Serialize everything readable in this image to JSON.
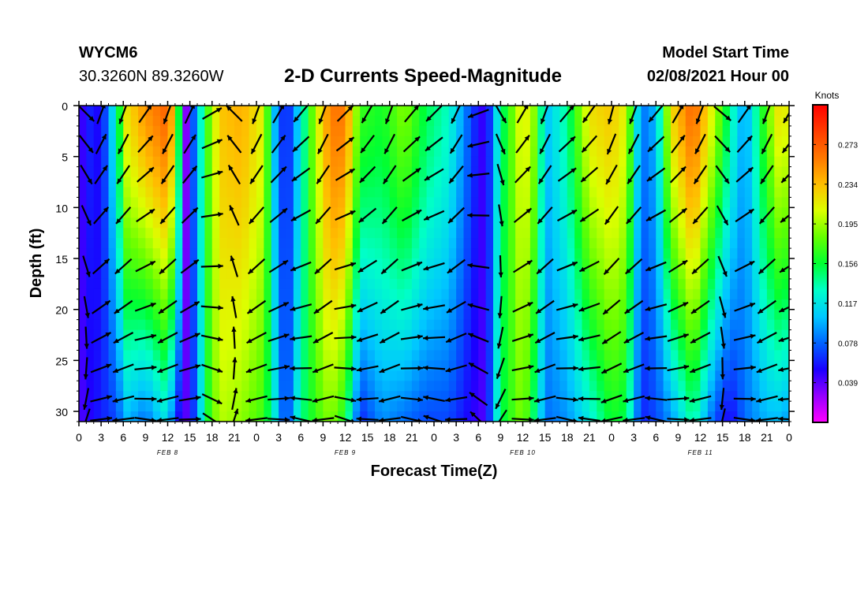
{
  "header": {
    "station": "WYCM6",
    "coords": "30.3260N 89.3260W",
    "title": "2-D Currents Speed-Magnitude",
    "model_start_label": "Model Start Time",
    "model_start_value": "02/08/2021 Hour 00"
  },
  "chart_data": {
    "type": "heatmap",
    "title": "2-D Currents Speed-Magnitude",
    "xlabel": "Forecast Time(Z)",
    "ylabel": "Depth (ft)",
    "units": "Knots",
    "x_tick_labels": [
      "0",
      "3",
      "6",
      "9",
      "12",
      "15",
      "18",
      "21",
      "0",
      "3",
      "6",
      "9",
      "12",
      "15",
      "18",
      "21",
      "0",
      "3",
      "6",
      "9",
      "12",
      "15",
      "18",
      "21",
      "0",
      "3",
      "6",
      "9",
      "12",
      "15",
      "18",
      "21",
      "0"
    ],
    "x_range_hours": [
      0,
      96
    ],
    "day_labels": [
      {
        "label": "FEB 8",
        "hour": 12
      },
      {
        "label": "FEB 9",
        "hour": 36
      },
      {
        "label": "FEB 10",
        "hour": 60
      },
      {
        "label": "FEB 11",
        "hour": 84
      }
    ],
    "y_ticks": [
      0,
      5,
      10,
      15,
      20,
      25,
      30
    ],
    "y_tick_labels": [
      "0",
      "5",
      "10",
      "15",
      "20",
      "25",
      "30"
    ],
    "y_range_ft": [
      0,
      31
    ],
    "colorbar": {
      "range": [
        0,
        0.312
      ],
      "ticks": [
        0.039,
        0.078,
        0.117,
        0.156,
        0.195,
        0.234,
        0.273
      ],
      "tick_labels": [
        "0.039",
        "0.078",
        "0.117",
        "0.156",
        "0.195",
        "0.234",
        "0.273"
      ],
      "stops": [
        "#ff00ff",
        "#9600ff",
        "#1a00ff",
        "#0064ff",
        "#00c8ff",
        "#00ffc8",
        "#00ff32",
        "#64ff00",
        "#dcff00",
        "#ffbe00",
        "#ff7800",
        "#ff3c00",
        "#ff0000"
      ]
    },
    "speed_profile": [
      {
        "hour": 0,
        "surface": 0.04,
        "deep": 0.04
      },
      {
        "hour": 1.5,
        "surface": 0.06,
        "deep": 0.05
      },
      {
        "hour": 3,
        "surface": 0.05,
        "deep": 0.06
      },
      {
        "hour": 5,
        "surface": 0.13,
        "deep": 0.07
      },
      {
        "hour": 6.5,
        "surface": 0.22,
        "deep": 0.1
      },
      {
        "hour": 9,
        "surface": 0.25,
        "deep": 0.08
      },
      {
        "hour": 12,
        "surface": 0.27,
        "deep": 0.12
      },
      {
        "hour": 13,
        "surface": 0.22,
        "deep": 0.06
      },
      {
        "hour": 14.5,
        "surface": 0.03,
        "deep": 0.04
      },
      {
        "hour": 16,
        "surface": 0.1,
        "deep": 0.08
      },
      {
        "hour": 17,
        "surface": 0.16,
        "deep": 0.15
      },
      {
        "hour": 19,
        "surface": 0.23,
        "deep": 0.2
      },
      {
        "hour": 22,
        "surface": 0.24,
        "deep": 0.19
      },
      {
        "hour": 25,
        "surface": 0.21,
        "deep": 0.17
      },
      {
        "hour": 26.5,
        "surface": 0.1,
        "deep": 0.12
      },
      {
        "hour": 28,
        "surface": 0.05,
        "deep": 0.06
      },
      {
        "hour": 30,
        "surface": 0.12,
        "deep": 0.14
      },
      {
        "hour": 32,
        "surface": 0.2,
        "deep": 0.17
      },
      {
        "hour": 34,
        "surface": 0.26,
        "deep": 0.19
      },
      {
        "hour": 36,
        "surface": 0.26,
        "deep": 0.16
      },
      {
        "hour": 38,
        "surface": 0.17,
        "deep": 0.06
      },
      {
        "hour": 41,
        "surface": 0.16,
        "deep": 0.09
      },
      {
        "hour": 44,
        "surface": 0.19,
        "deep": 0.08
      },
      {
        "hour": 47,
        "surface": 0.15,
        "deep": 0.07
      },
      {
        "hour": 50,
        "surface": 0.13,
        "deep": 0.07
      },
      {
        "hour": 53,
        "surface": 0.07,
        "deep": 0.05
      },
      {
        "hour": 55,
        "surface": 0.04,
        "deep": 0.04
      },
      {
        "hour": 57,
        "surface": 0.14,
        "deep": 0.15
      },
      {
        "hour": 60,
        "surface": 0.22,
        "deep": 0.19
      },
      {
        "hour": 62,
        "surface": 0.18,
        "deep": 0.13
      },
      {
        "hour": 63,
        "surface": 0.1,
        "deep": 0.08
      },
      {
        "hour": 66,
        "surface": 0.14,
        "deep": 0.09
      },
      {
        "hour": 69,
        "surface": 0.22,
        "deep": 0.12
      },
      {
        "hour": 72,
        "surface": 0.23,
        "deep": 0.16
      },
      {
        "hour": 74,
        "surface": 0.21,
        "deep": 0.15
      },
      {
        "hour": 76,
        "surface": 0.08,
        "deep": 0.06
      },
      {
        "hour": 78,
        "surface": 0.1,
        "deep": 0.07
      },
      {
        "hour": 80,
        "surface": 0.22,
        "deep": 0.09
      },
      {
        "hour": 83,
        "surface": 0.27,
        "deep": 0.14
      },
      {
        "hour": 86,
        "surface": 0.2,
        "deep": 0.07
      },
      {
        "hour": 88,
        "surface": 0.14,
        "deep": 0.05
      },
      {
        "hour": 90,
        "surface": 0.09,
        "deep": 0.08
      },
      {
        "hour": 93,
        "surface": 0.18,
        "deep": 0.1
      },
      {
        "hour": 95,
        "surface": 0.23,
        "deep": 0.1
      },
      {
        "hour": 96,
        "surface": 0.2,
        "deep": 0.09
      }
    ],
    "vector_hours": [
      1,
      3,
      6,
      9,
      12,
      15,
      18,
      21,
      24,
      27,
      30,
      33,
      36,
      39,
      42,
      45,
      48,
      51,
      54,
      57,
      60,
      63,
      66,
      69,
      72,
      75,
      78,
      81,
      84,
      87,
      90,
      93,
      96
    ],
    "vector_depths_ft": [
      0,
      3,
      6,
      10,
      15,
      19,
      22,
      25,
      28,
      30
    ],
    "vector_directions_deg": [
      135,
      20,
      200,
      35,
      200,
      25,
      60,
      315,
      200,
      30,
      220,
      200,
      45,
      210,
      200,
      40,
      225,
      205,
      250,
      150,
      30,
      200,
      40,
      215,
      195,
      200,
      220,
      30,
      200,
      130,
      35,
      200,
      210
    ]
  }
}
